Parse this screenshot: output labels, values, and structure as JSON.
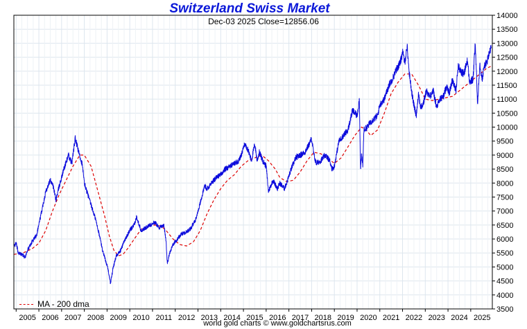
{
  "chart_data": {
    "type": "line",
    "title": "Switzerland Swiss Market",
    "subtitle": "Dec-03  2025    Close=12856.06",
    "footer": "world gold charts © www.goldchartsrus.com",
    "legend": {
      "label": "MA - 200 dma",
      "placement": "bottom-left"
    },
    "ylim": [
      3500,
      14000
    ],
    "xlim": [
      2004.9,
      2025.95
    ],
    "yticks": [
      "3500",
      "4000",
      "4500",
      "5000",
      "5500",
      "6000",
      "6500",
      "7000",
      "7500",
      "8000",
      "8500",
      "9000",
      "9500",
      "10000",
      "10500",
      "11000",
      "11500",
      "12000",
      "12500",
      "13000",
      "13500",
      "14000"
    ],
    "ytick_values": [
      3500,
      4000,
      4500,
      5000,
      5500,
      6000,
      6500,
      7000,
      7500,
      8000,
      8500,
      9000,
      9500,
      10000,
      10500,
      11000,
      11500,
      12000,
      12500,
      13000,
      13500,
      14000
    ],
    "xticks": [
      "2005",
      "2006",
      "2007",
      "2008",
      "2009",
      "2010",
      "2011",
      "2012",
      "2013",
      "2014",
      "2015",
      "2016",
      "2017",
      "2018",
      "2019",
      "2020",
      "2021",
      "2022",
      "2023",
      "2024",
      "2025"
    ],
    "xtick_values": [
      2005.5,
      2006.5,
      2007.5,
      2008.5,
      2009.5,
      2010.5,
      2011.5,
      2012.5,
      2013.5,
      2014.5,
      2015.5,
      2016.5,
      2017.5,
      2018.5,
      2019.5,
      2020.5,
      2021.5,
      2022.5,
      2023.5,
      2024.5,
      2025.5
    ],
    "colors": {
      "price": "#0b0bdc",
      "ma": "#dd0000",
      "grid": "#dde6ee",
      "title": "#0b18d8"
    },
    "series": [
      {
        "name": "Close",
        "x": [
          2004.9,
          2005.0,
          2005.1,
          2005.25,
          2005.4,
          2005.5,
          2005.7,
          2005.9,
          2006.1,
          2006.3,
          2006.5,
          2006.6,
          2006.75,
          2006.9,
          2007.1,
          2007.3,
          2007.45,
          2007.6,
          2007.75,
          2007.9,
          2008.0,
          2008.15,
          2008.3,
          2008.5,
          2008.7,
          2008.8,
          2008.95,
          2009.05,
          2009.15,
          2009.25,
          2009.4,
          2009.6,
          2009.8,
          2010.0,
          2010.2,
          2010.3,
          2010.5,
          2010.7,
          2010.9,
          2011.1,
          2011.3,
          2011.5,
          2011.6,
          2011.65,
          2011.75,
          2011.9,
          2012.1,
          2012.3,
          2012.5,
          2012.7,
          2012.9,
          2013.1,
          2013.3,
          2013.4,
          2013.6,
          2013.8,
          2014.0,
          2014.2,
          2014.4,
          2014.6,
          2014.8,
          2014.95,
          2015.05,
          2015.2,
          2015.35,
          2015.5,
          2015.6,
          2015.7,
          2015.85,
          2016.0,
          2016.1,
          2016.2,
          2016.3,
          2016.5,
          2016.6,
          2016.8,
          2016.9,
          2017.1,
          2017.3,
          2017.5,
          2017.7,
          2017.9,
          2018.0,
          2018.1,
          2018.2,
          2018.4,
          2018.6,
          2018.8,
          2018.9,
          2019.0,
          2019.2,
          2019.4,
          2019.6,
          2019.8,
          2020.0,
          2020.1,
          2020.15,
          2020.2,
          2020.25,
          2020.3,
          2020.45,
          2020.6,
          2020.75,
          2020.9,
          2021.0,
          2021.2,
          2021.4,
          2021.6,
          2021.75,
          2021.9,
          2022.0,
          2022.1,
          2022.2,
          2022.3,
          2022.45,
          2022.6,
          2022.7,
          2022.8,
          2022.9,
          2023.05,
          2023.2,
          2023.35,
          2023.5,
          2023.65,
          2023.8,
          2023.95,
          2024.05,
          2024.2,
          2024.35,
          2024.45,
          2024.55,
          2024.7,
          2024.85,
          2024.95,
          2025.1,
          2025.2,
          2025.25,
          2025.3,
          2025.4,
          2025.5,
          2025.6,
          2025.7,
          2025.8,
          2025.9
        ],
        "values": [
          5750,
          5850,
          5500,
          5450,
          5350,
          5600,
          5900,
          6150,
          6900,
          7700,
          8100,
          8000,
          7400,
          7900,
          8500,
          9000,
          8700,
          9600,
          9100,
          8700,
          8000,
          7600,
          7200,
          6700,
          6000,
          5600,
          5200,
          4900,
          4400,
          4900,
          5400,
          5600,
          6000,
          6300,
          6500,
          6800,
          6300,
          6400,
          6500,
          6600,
          6400,
          6500,
          5900,
          5100,
          5500,
          5800,
          6000,
          6200,
          6250,
          6400,
          6700,
          7300,
          7900,
          7800,
          8000,
          8200,
          8300,
          8500,
          8600,
          8700,
          8800,
          9100,
          9400,
          9200,
          8800,
          9400,
          8800,
          9100,
          8800,
          8600,
          7700,
          7900,
          8100,
          7800,
          8000,
          7800,
          8000,
          8500,
          8900,
          9000,
          9100,
          9400,
          9600,
          9000,
          8700,
          8800,
          9000,
          8800,
          8500,
          8600,
          9500,
          9700,
          9900,
          10600,
          10400,
          11000,
          8500,
          9000,
          8600,
          9900,
          10000,
          10200,
          10300,
          10400,
          10800,
          11000,
          11500,
          11800,
          12100,
          12300,
          12700,
          12300,
          12900,
          11900,
          11000,
          10400,
          11200,
          10700,
          10800,
          11300,
          11100,
          11300,
          10700,
          11000,
          11100,
          11500,
          11200,
          11700,
          11300,
          12200,
          12000,
          11900,
          12400,
          11600,
          11700,
          13000,
          11900,
          10800,
          12300,
          11700,
          12200,
          12300,
          12600,
          12856
        ]
      },
      {
        "name": "MA - 200 dma",
        "x": [
          2004.9,
          2005.3,
          2005.7,
          2006.0,
          2006.3,
          2006.6,
          2006.9,
          2007.2,
          2007.5,
          2007.8,
          2008.0,
          2008.3,
          2008.6,
          2008.9,
          2009.1,
          2009.3,
          2009.5,
          2009.7,
          2009.9,
          2010.2,
          2010.5,
          2010.8,
          2011.1,
          2011.4,
          2011.6,
          2011.9,
          2012.2,
          2012.5,
          2012.8,
          2013.1,
          2013.4,
          2013.7,
          2014.0,
          2014.3,
          2014.6,
          2014.9,
          2015.2,
          2015.5,
          2015.8,
          2016.1,
          2016.4,
          2016.6,
          2016.9,
          2017.2,
          2017.5,
          2017.8,
          2018.1,
          2018.4,
          2018.7,
          2019.0,
          2019.3,
          2019.6,
          2019.9,
          2020.2,
          2020.4,
          2020.6,
          2020.9,
          2021.2,
          2021.5,
          2021.8,
          2022.1,
          2022.4,
          2022.7,
          2023.0,
          2023.3,
          2023.6,
          2023.9,
          2024.2,
          2024.5,
          2024.8,
          2025.1,
          2025.4,
          2025.7,
          2025.95
        ],
        "values": [
          5450,
          5500,
          5650,
          5850,
          6300,
          7000,
          7600,
          8100,
          8600,
          9000,
          9000,
          8600,
          7700,
          6800,
          6100,
          5600,
          5400,
          5450,
          5650,
          6000,
          6350,
          6450,
          6500,
          6450,
          6300,
          6000,
          5800,
          5750,
          5900,
          6300,
          6900,
          7400,
          7800,
          8100,
          8300,
          8600,
          8800,
          8900,
          9000,
          8800,
          8500,
          8200,
          8050,
          8100,
          8400,
          8800,
          9100,
          9050,
          8900,
          8700,
          8900,
          9300,
          9700,
          10000,
          9900,
          9700,
          9900,
          10500,
          11200,
          11600,
          11900,
          11900,
          11500,
          11000,
          10950,
          11000,
          11050,
          11100,
          11300,
          11500,
          11700,
          11900,
          12100,
          12200
        ]
      }
    ]
  }
}
